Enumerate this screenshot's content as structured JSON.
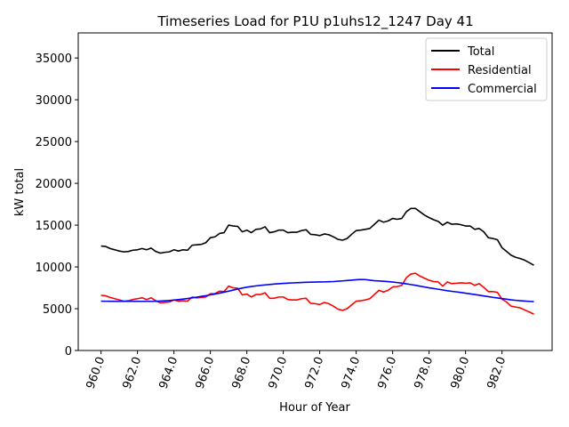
{
  "chart_data": {
    "type": "line",
    "title": "Timeseries Load for P1U p1uhs12_1247  Day 41",
    "xlabel": "Hour of Year",
    "ylabel": "kW total",
    "xlim": [
      958.75,
      984.75
    ],
    "ylim": [
      0,
      38000
    ],
    "xticks": [
      960,
      962,
      964,
      966,
      968,
      970,
      972,
      974,
      976,
      978,
      980,
      982
    ],
    "xtick_labels": [
      "960.0",
      "962.0",
      "964.0",
      "966.0",
      "968.0",
      "970.0",
      "972.0",
      "974.0",
      "976.0",
      "978.0",
      "980.0",
      "982.0"
    ],
    "yticks": [
      0,
      5000,
      10000,
      15000,
      20000,
      25000,
      30000,
      35000
    ],
    "ytick_labels": [
      "0",
      "5000",
      "10000",
      "15000",
      "20000",
      "25000",
      "30000",
      "35000"
    ],
    "legend_position": "top-right",
    "x": [
      960.0,
      960.25,
      960.5,
      960.75,
      961.0,
      961.25,
      961.5,
      961.75,
      962.0,
      962.25,
      962.5,
      962.75,
      963.0,
      963.25,
      963.5,
      963.75,
      964.0,
      964.25,
      964.5,
      964.75,
      965.0,
      965.25,
      965.5,
      965.75,
      966.0,
      966.25,
      966.5,
      966.75,
      967.0,
      967.25,
      967.5,
      967.75,
      968.0,
      968.25,
      968.5,
      968.75,
      969.0,
      969.25,
      969.5,
      969.75,
      970.0,
      970.25,
      970.5,
      970.75,
      971.0,
      971.25,
      971.5,
      971.75,
      972.0,
      972.25,
      972.5,
      972.75,
      973.0,
      973.25,
      973.5,
      973.75,
      974.0,
      974.25,
      974.5,
      974.75,
      975.0,
      975.25,
      975.5,
      975.75,
      976.0,
      976.25,
      976.5,
      976.75,
      977.0,
      977.25,
      977.5,
      977.75,
      978.0,
      978.25,
      978.5,
      978.75,
      979.0,
      979.25,
      979.5,
      979.75,
      980.0,
      980.25,
      980.5,
      980.75,
      981.0,
      981.25,
      981.5,
      981.75,
      982.0,
      982.25,
      982.5,
      982.75,
      983.0,
      983.25,
      983.5,
      983.75
    ],
    "series": [
      {
        "name": "Total",
        "color": "#000000",
        "values": [
          12500,
          12450,
          12200,
          12050,
          11900,
          11800,
          11850,
          12000,
          12050,
          12200,
          12050,
          12250,
          11850,
          11650,
          11750,
          11800,
          12050,
          11900,
          12050,
          12000,
          12600,
          12650,
          12700,
          12900,
          13500,
          13600,
          14000,
          14100,
          15000,
          14900,
          14850,
          14200,
          14400,
          14100,
          14500,
          14550,
          14800,
          14100,
          14200,
          14400,
          14400,
          14100,
          14150,
          14150,
          14350,
          14450,
          13900,
          13850,
          13750,
          13950,
          13850,
          13600,
          13300,
          13200,
          13400,
          13900,
          14350,
          14400,
          14500,
          14600,
          15100,
          15600,
          15350,
          15500,
          15800,
          15700,
          15800,
          16600,
          17000,
          17000,
          16600,
          16200,
          15900,
          15650,
          15450,
          15000,
          15350,
          15100,
          15150,
          15050,
          14900,
          14900,
          14500,
          14600,
          14200,
          13500,
          13400,
          13250,
          12300,
          11850,
          11400,
          11150,
          11000,
          10800,
          10500,
          10200
        ]
      },
      {
        "name": "Residential",
        "color": "#ff0000",
        "values": [
          6600,
          6550,
          6350,
          6200,
          6050,
          5900,
          5950,
          6100,
          6200,
          6300,
          6100,
          6300,
          5950,
          5700,
          5750,
          5800,
          6050,
          5900,
          5950,
          5900,
          6400,
          6300,
          6350,
          6400,
          6800,
          6800,
          7100,
          7050,
          7700,
          7500,
          7450,
          6650,
          6750,
          6400,
          6700,
          6700,
          6900,
          6250,
          6250,
          6400,
          6400,
          6100,
          6050,
          6050,
          6200,
          6250,
          5650,
          5600,
          5500,
          5750,
          5600,
          5300,
          4950,
          4800,
          5000,
          5450,
          5900,
          5950,
          6050,
          6200,
          6700,
          7200,
          7000,
          7200,
          7600,
          7650,
          7800,
          8700,
          9150,
          9250,
          8900,
          8650,
          8400,
          8250,
          8200,
          7700,
          8200,
          8000,
          8050,
          8100,
          8050,
          8100,
          7800,
          8000,
          7550,
          7050,
          7050,
          6950,
          6150,
          5800,
          5300,
          5200,
          5100,
          4850,
          4600,
          4350
        ]
      },
      {
        "name": "Commercial",
        "color": "#0000ff",
        "values": [
          5900,
          5895,
          5890,
          5885,
          5880,
          5880,
          5880,
          5880,
          5880,
          5880,
          5880,
          5880,
          5890,
          5910,
          5940,
          5980,
          6030,
          6090,
          6150,
          6220,
          6300,
          6380,
          6470,
          6560,
          6650,
          6750,
          6860,
          6980,
          7100,
          7230,
          7350,
          7470,
          7580,
          7660,
          7730,
          7790,
          7850,
          7900,
          7950,
          7990,
          8030,
          8060,
          8090,
          8110,
          8140,
          8160,
          8180,
          8190,
          8200,
          8210,
          8230,
          8250,
          8290,
          8330,
          8380,
          8420,
          8470,
          8500,
          8490,
          8420,
          8350,
          8320,
          8280,
          8240,
          8190,
          8130,
          8060,
          7980,
          7890,
          7800,
          7700,
          7600,
          7500,
          7420,
          7330,
          7240,
          7150,
          7080,
          7010,
          6940,
          6860,
          6780,
          6700,
          6620,
          6530,
          6450,
          6360,
          6290,
          6210,
          6140,
          6060,
          6000,
          5950,
          5910,
          5880,
          5850
        ]
      }
    ]
  }
}
